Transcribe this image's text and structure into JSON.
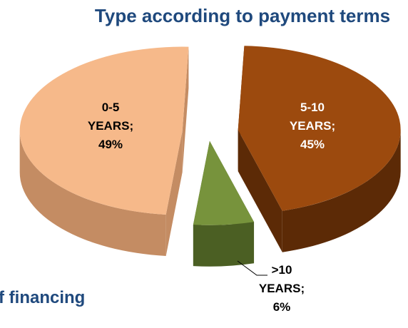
{
  "chart_data": {
    "type": "pie",
    "title": "Type according to payment terms",
    "categories": [
      "0-5 YEARS",
      "5-10 YEARS",
      ">10 YEARS"
    ],
    "label_separator": ";",
    "values": [
      49,
      45,
      6
    ],
    "value_labels": [
      "49%",
      "45%",
      "6%"
    ],
    "colors": [
      "#f6b98a",
      "#9c4a0e",
      "#77933c"
    ],
    "side_colors": [
      "#c48c63",
      "#5c2a06",
      "#4b5f23"
    ],
    "annotation": "f financing"
  }
}
